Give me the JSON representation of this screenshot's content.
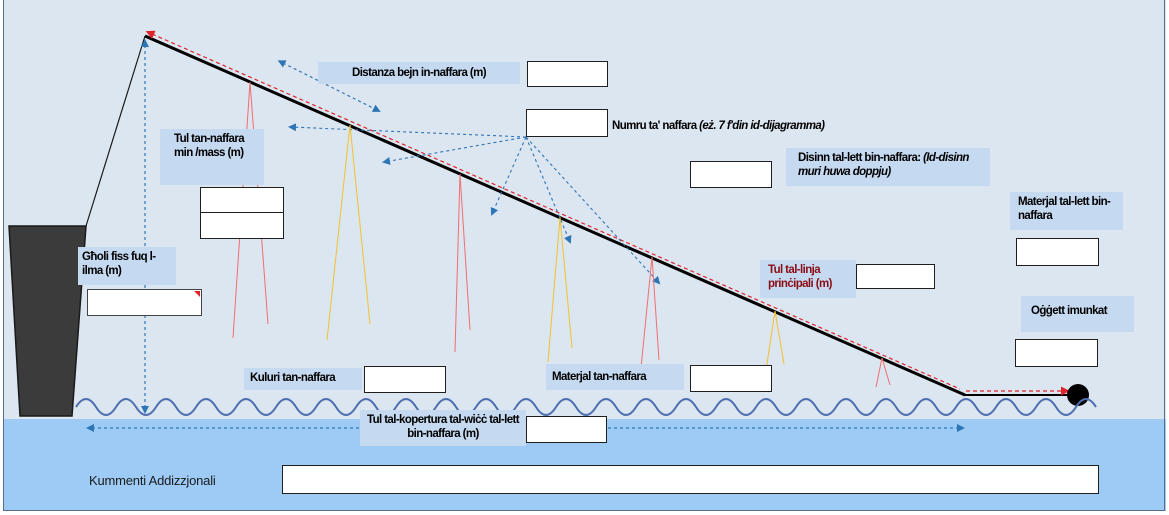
{
  "labels": {
    "distance_between_hooks": "Distanza bejn in-naffara (m)",
    "hook_number_prefix": "Numru ta' naffara ",
    "hook_number_italic": "(eż. 7 f'din id-dijagramma)",
    "branch_length": "Tul tan-naffara min /mass (m)",
    "float_height": "Għoli fiss fuq l-ilma  (m)",
    "float_design_main": "Disinn tal-lett bin-naffara:  ",
    "float_design_italic": "(Id-disinn muri huwa doppju)",
    "longline_material": "Materjal tal-lett bin-naffara",
    "main_line_length": "Tul tal-linja prinċipali (m)",
    "attached_object": "Oġġett imunkat",
    "hook_color": "Kuluri tan-naffara",
    "hook_material": "Materjal tan-naffara",
    "surface_coverage_length": "Tul tal-kopertura tal-wiċċ tal-lett bin-naffara (m)",
    "additional_comments": "Kummenti Addizzjonali"
  },
  "fields": {
    "distance_between_hooks": "",
    "hook_number": "",
    "branch_length_1": "",
    "branch_length_2": "",
    "float_height": "",
    "float_design": "",
    "longline_material": "",
    "main_line_length": "",
    "attached_object": "",
    "hook_color": "",
    "hook_material": "",
    "surface_coverage_length": "",
    "additional_comments": ""
  },
  "colors": {
    "sky": "#dce6f1",
    "water": "#9dcbf6",
    "label_bg": "#c5d9f1",
    "main_line": "#000000",
    "main_line_overlay": "#e0242a",
    "annotation_arrow": "#2e75b6",
    "wave": "#4f6fb0",
    "branch_red": "#f06e6e",
    "branch_yellow": "#f2c12e",
    "vessel": "#404040",
    "emphasis_text": "#8b0d14"
  }
}
